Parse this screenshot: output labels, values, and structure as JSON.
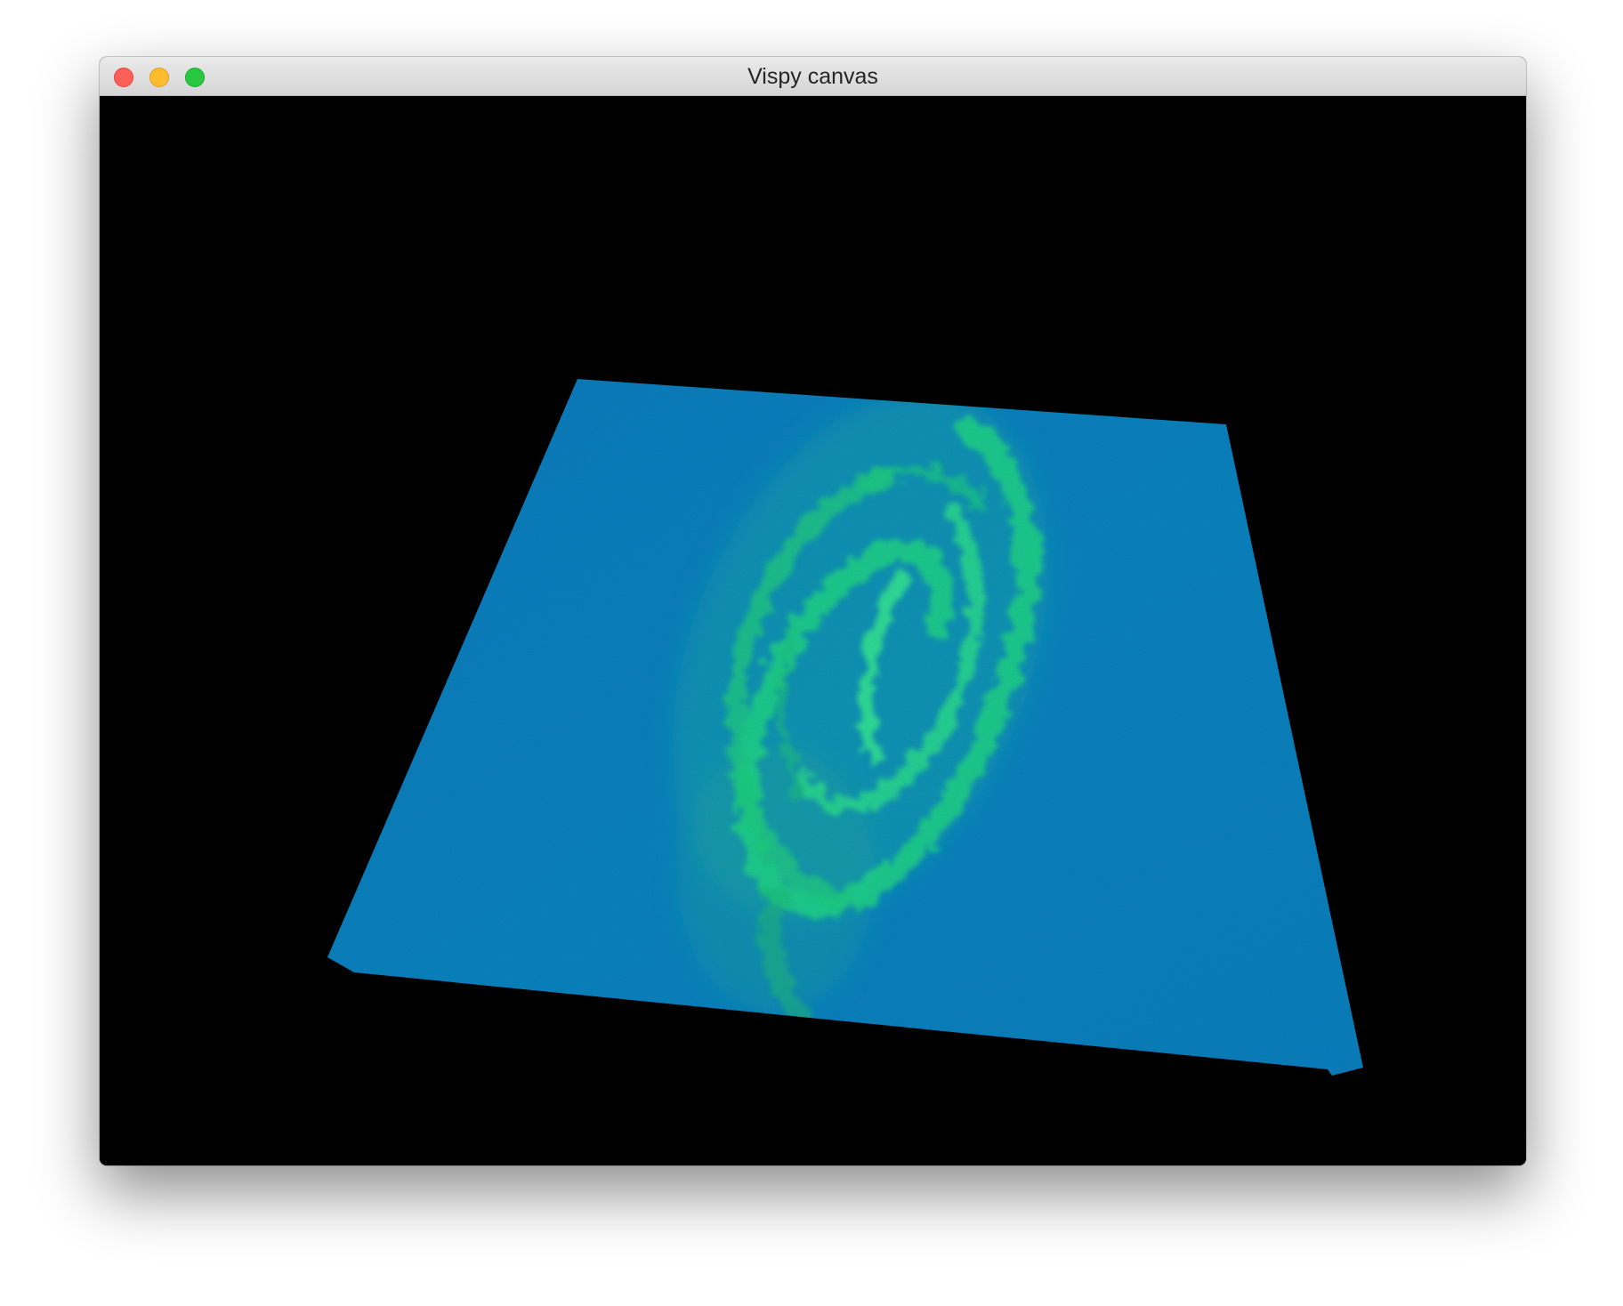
{
  "window": {
    "title": "Vispy canvas",
    "buttons": {
      "close": "close-button",
      "minimize": "minimize-button",
      "zoom": "zoom-button"
    }
  },
  "canvas": {
    "background": "#000000",
    "volume_color": "#0a86c4",
    "feature_color": "#18e07a",
    "content": "volume-rendered-spiral-galaxy"
  }
}
